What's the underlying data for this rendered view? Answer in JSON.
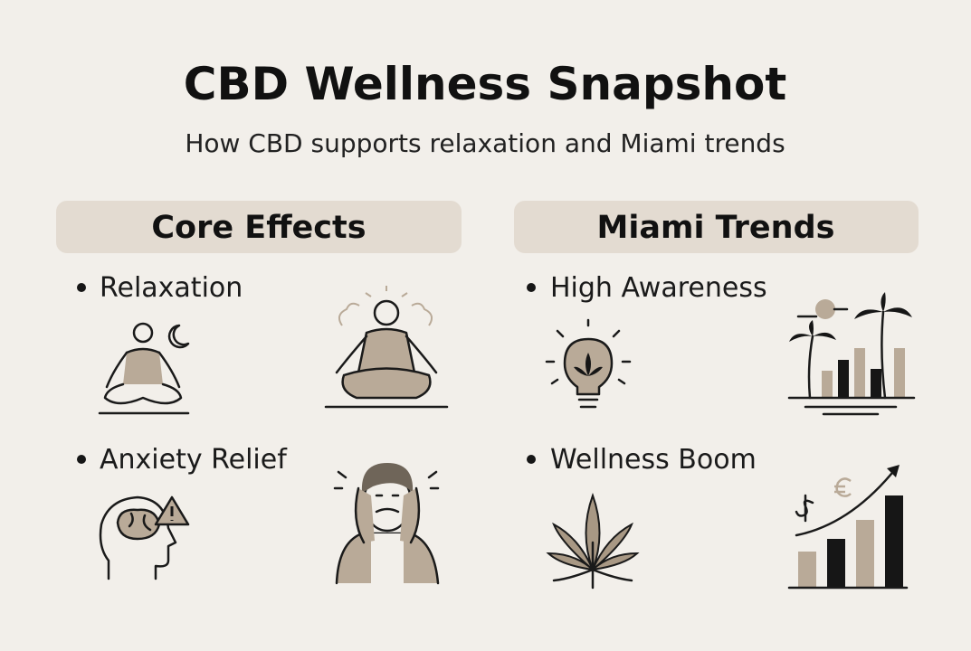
{
  "header": {
    "title": "CBD Wellness Snapshot",
    "subtitle": "How CBD supports relaxation and Miami trends"
  },
  "sections": [
    {
      "heading": "Core Effects",
      "items": [
        {
          "label": "Relaxation"
        },
        {
          "label": "Anxiety Relief"
        }
      ]
    },
    {
      "heading": "Miami Trends",
      "items": [
        {
          "label": "High Awareness"
        },
        {
          "label": "Wellness Boom"
        }
      ]
    }
  ]
}
